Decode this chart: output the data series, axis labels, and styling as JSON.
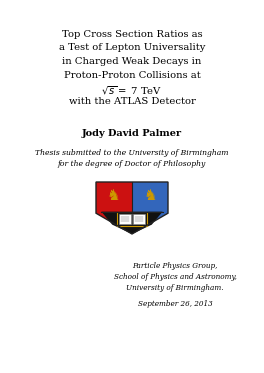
{
  "background_color": "#ffffff",
  "title_lines": [
    "Top Cross Section Ratios as",
    "a Test of Lepton Universality",
    "in Charged Weak Decays in",
    "Proton-Proton Collisions at",
    "$\\sqrt{s}=$ 7 TeV",
    "with the ATLAS Detector"
  ],
  "author": "Jody David Palmer",
  "thesis_line1": "Thesis submitted to the University of Birmingham",
  "thesis_line2": "for the degree of Doctor of Philosophy",
  "affil_line1": "Particle Physics Group,",
  "affil_line2": "School of Physics and Astronomy,",
  "affil_line3": "University of Birmingham.",
  "date": "September 26, 2013",
  "title_fontsize": 7.2,
  "author_fontsize": 7.0,
  "italic_fontsize": 5.5,
  "affil_fontsize": 5.2,
  "date_fontsize": 5.2,
  "crest_red": "#cc1111",
  "crest_blue": "#3366bb",
  "crest_gold": "#cc9900",
  "crest_dark": "#222222"
}
